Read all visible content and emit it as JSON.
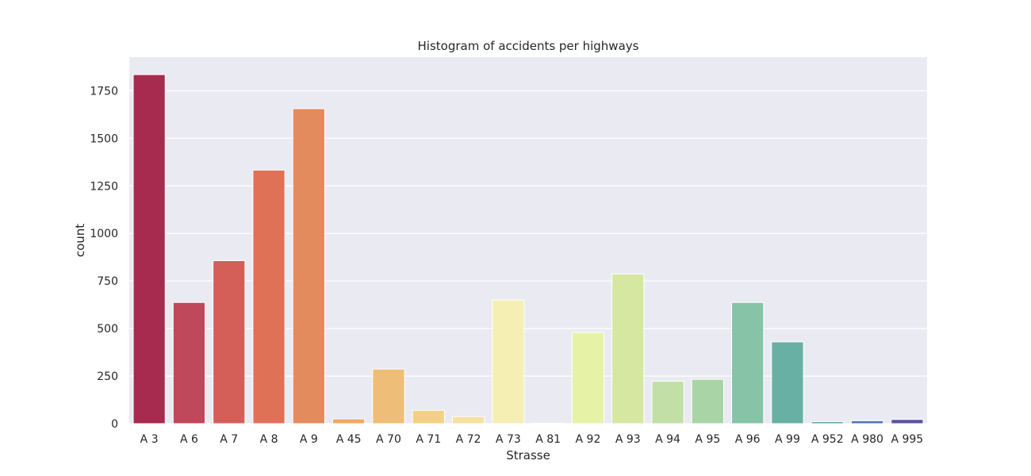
{
  "chart_data": {
    "type": "bar",
    "title": "Histogram of accidents per highways",
    "xlabel": "Strasse",
    "ylabel": "count",
    "categories": [
      "A 3",
      "A 6",
      "A 7",
      "A 8",
      "A 9",
      "A 45",
      "A 70",
      "A 71",
      "A 72",
      "A 73",
      "A 81",
      "A 92",
      "A 93",
      "A 94",
      "A 95",
      "A 96",
      "A 99",
      "A 952",
      "A 980",
      "A 995"
    ],
    "values": [
      1835,
      637,
      857,
      1333,
      1656,
      25,
      287,
      70,
      37,
      650,
      2,
      480,
      787,
      223,
      233,
      637,
      430,
      10,
      15,
      22
    ],
    "colors": [
      "#a62b4f",
      "#c0485b",
      "#d35f58",
      "#df7157",
      "#e48b5e",
      "#eeaa63",
      "#eebd77",
      "#f3d086",
      "#f6e1a0",
      "#f5efb4",
      "#f6f6c4",
      "#e6f2a6",
      "#d6e7a1",
      "#c2dfa7",
      "#a8d4a6",
      "#86c3a7",
      "#69b0a4",
      "#5499ad",
      "#4b76af",
      "#5b53a3"
    ],
    "yticks": [
      0,
      250,
      500,
      750,
      1000,
      1250,
      1500,
      1750
    ],
    "ylim": [
      0,
      1927
    ],
    "grid": true,
    "background": "#eaeaf2",
    "grid_color": "#ffffff"
  }
}
